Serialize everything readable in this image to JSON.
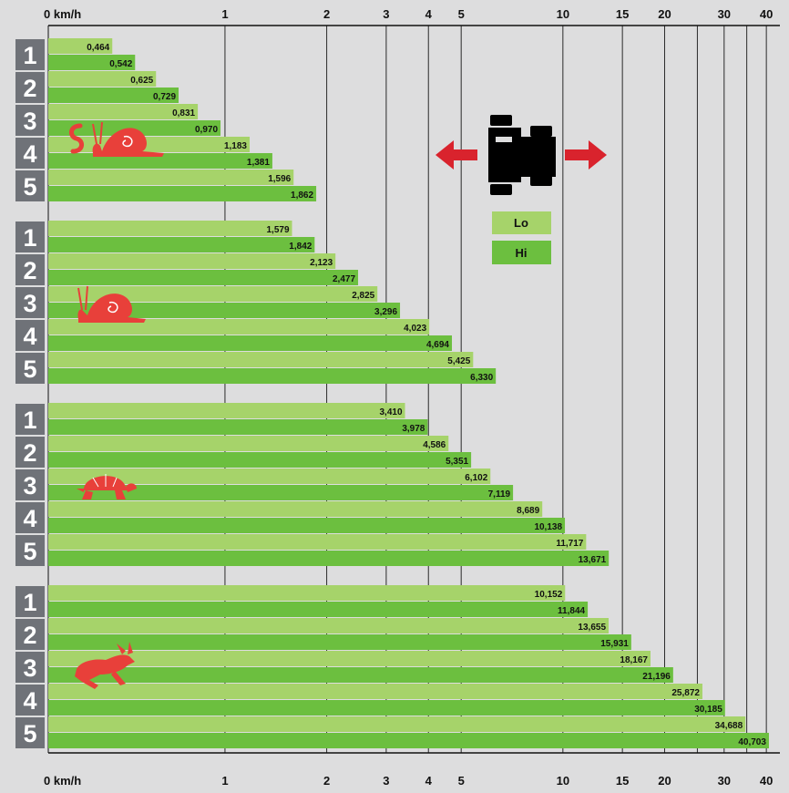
{
  "chart_data": {
    "type": "bar",
    "orientation": "horizontal",
    "x_scale": "log",
    "x_unit_label": "km/h",
    "x_ticks": [
      "0 km/h",
      "1",
      "2",
      "3",
      "4",
      "5",
      "10",
      "15",
      "20",
      "25",
      "30",
      "35",
      "40"
    ],
    "x_tick_values": [
      0.3,
      1,
      2,
      3,
      4,
      5,
      10,
      15,
      20,
      25,
      30,
      35,
      40
    ],
    "x_tick_labels_shown": [
      "0 km/h",
      "1",
      "2",
      "3",
      "4",
      "5",
      "10",
      "15",
      "20",
      "",
      "30",
      "",
      "40"
    ],
    "xlim": [
      0.3,
      42
    ],
    "legend": {
      "position": "top-right",
      "entries": [
        "Lo",
        "Hi"
      ]
    },
    "colors": {
      "Lo": "#a6d36a",
      "Hi": "#6cbf3f",
      "background": "#ddddde",
      "gear_box": "#6f7278",
      "animal": "#e8403a",
      "arrow": "#d9232d"
    },
    "groups": [
      {
        "icon": "worm-snail-icon",
        "gears": [
          "1",
          "2",
          "3",
          "4",
          "5"
        ],
        "lo": [
          0.464,
          0.625,
          0.831,
          1.183,
          1.596
        ],
        "hi": [
          0.542,
          0.729,
          0.97,
          1.381,
          1.862
        ],
        "lo_labels": [
          "0,464",
          "0,625",
          "0,831",
          "1,183",
          "1,596"
        ],
        "hi_labels": [
          "0,542",
          "0,729",
          "0,970",
          "1,381",
          "1,862"
        ]
      },
      {
        "icon": "snail-icon",
        "gears": [
          "1",
          "2",
          "3",
          "4",
          "5"
        ],
        "lo": [
          1.579,
          2.123,
          2.825,
          4.023,
          5.425
        ],
        "hi": [
          1.842,
          2.477,
          3.296,
          4.694,
          6.33
        ],
        "lo_labels": [
          "1,579",
          "2,123",
          "2,825",
          "4,023",
          "5,425"
        ],
        "hi_labels": [
          "1,842",
          "2,477",
          "3,296",
          "4,694",
          "6,330"
        ]
      },
      {
        "icon": "turtle-icon",
        "gears": [
          "1",
          "2",
          "3",
          "4",
          "5"
        ],
        "lo": [
          3.41,
          4.586,
          6.102,
          8.689,
          11.717
        ],
        "hi": [
          3.978,
          5.351,
          7.119,
          10.138,
          13.671
        ],
        "lo_labels": [
          "3,410",
          "4,586",
          "6,102",
          "8,689",
          "11,717"
        ],
        "hi_labels": [
          "3,978",
          "5,351",
          "7,119",
          "10,138",
          "13,671"
        ]
      },
      {
        "icon": "hare-icon",
        "gears": [
          "1",
          "2",
          "3",
          "4",
          "5"
        ],
        "lo": [
          10.152,
          13.655,
          18.167,
          25.872,
          34.688
        ],
        "hi": [
          11.844,
          15.931,
          21.196,
          30.185,
          40.703
        ],
        "lo_labels": [
          "10,152",
          "13,655",
          "18,167",
          "25,872",
          "34,688"
        ],
        "hi_labels": [
          "11,844",
          "15,931",
          "21,196",
          "30,185",
          "40,703"
        ]
      }
    ]
  }
}
